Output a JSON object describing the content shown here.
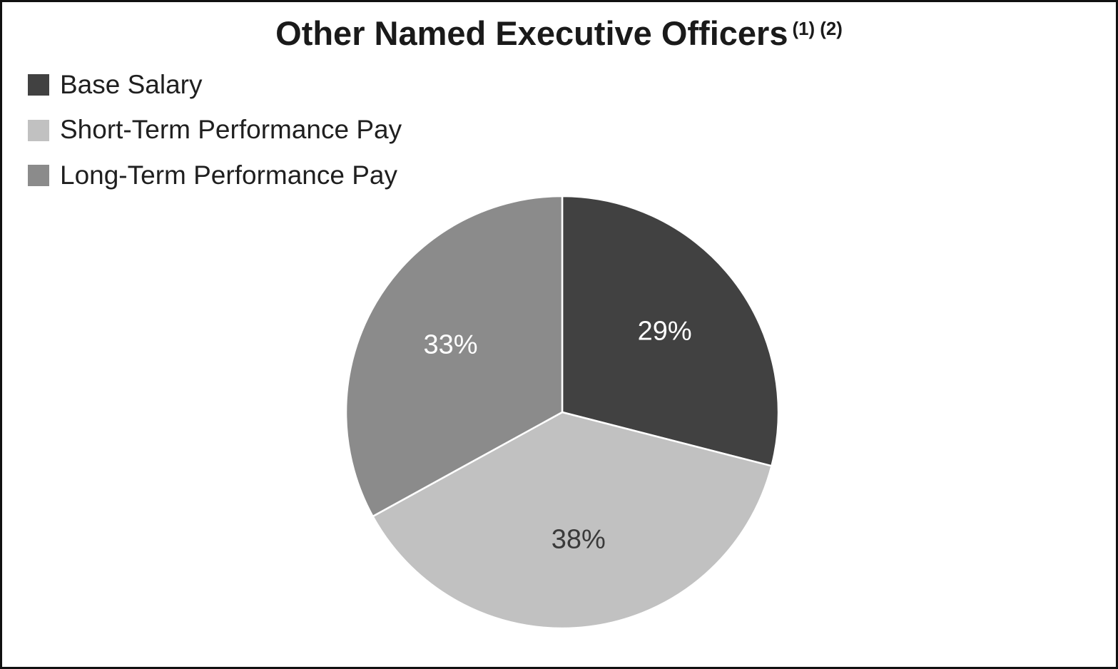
{
  "chart": {
    "title_main": "Other Named Executive Officers",
    "title_superscript": "(1) (2)"
  },
  "chart_data": {
    "type": "pie",
    "title": "Other Named Executive Officers (1) (2)",
    "legend_position": "top-left",
    "start_angle_deg": -90,
    "direction": "clockwise",
    "data_label_radius_fraction": 0.6,
    "slices": [
      {
        "label": "Base Salary",
        "value": 29,
        "display": "29%",
        "color": "#414141",
        "label_color": "#ffffff"
      },
      {
        "label": "Short-Term Performance Pay",
        "value": 38,
        "display": "38%",
        "color": "#c1c1c1",
        "label_color": "#3a3a3a"
      },
      {
        "label": "Long-Term Performance Pay",
        "value": 33,
        "display": "33%",
        "color": "#8b8b8b",
        "label_color": "#ffffff"
      }
    ],
    "background_color": "#ffffff",
    "border_color": "#111111",
    "slice_separator_color": "#ffffff"
  }
}
